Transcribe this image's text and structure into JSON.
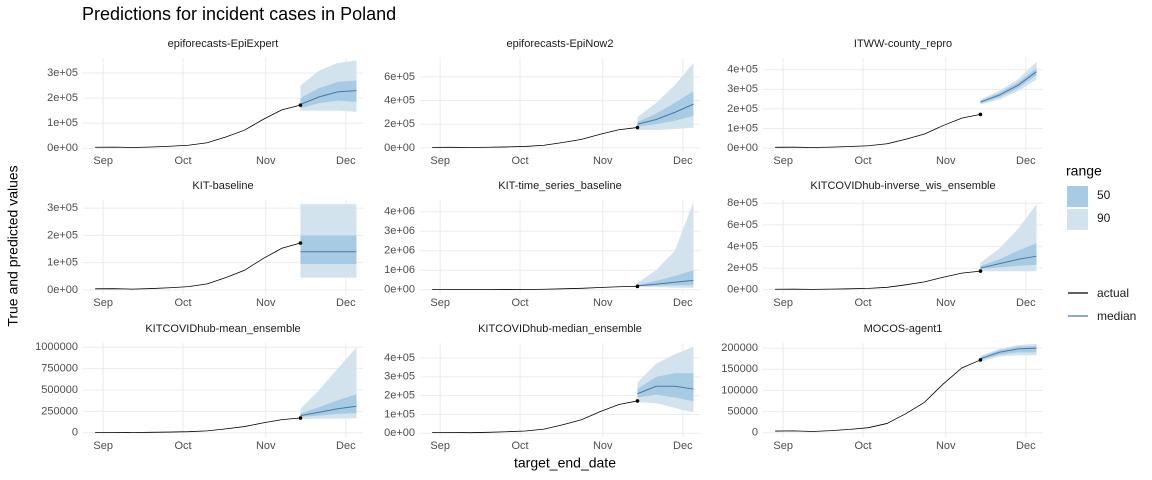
{
  "title": "Predictions for incident cases in Poland",
  "xlabel": "target_end_date",
  "ylabel": "True and predicted values",
  "legend": {
    "title": "range",
    "ranges": [
      {
        "name": "50",
        "color": "#a8cbe4"
      },
      {
        "name": "90",
        "color": "#d2e3ee"
      }
    ],
    "lines": [
      {
        "name": "actual",
        "color": "#000000"
      },
      {
        "name": "median",
        "color": "#4a77a3"
      }
    ]
  },
  "chart_data": [
    {
      "type": "line",
      "title": "epiforecasts-EpiExpert",
      "x": [
        0,
        1,
        2,
        3,
        4,
        5,
        6,
        7,
        8,
        9,
        10,
        11
      ],
      "xlim": [
        -0.65,
        14.35
      ],
      "xticks": [
        {
          "value": 0.43,
          "label": "Sep"
        },
        {
          "value": 4.71,
          "label": "Oct"
        },
        {
          "value": 9.14,
          "label": "Nov"
        },
        {
          "value": 13.43,
          "label": "Dec"
        }
      ],
      "series": [
        {
          "name": "actual",
          "values": [
            4000,
            4500,
            3000,
            5000,
            8000,
            12000,
            22000,
            45000,
            72000,
            115000,
            153000,
            172000
          ]
        }
      ],
      "forecast": {
        "x": [
          11,
          12,
          13,
          14
        ],
        "median": [
          175000,
          205000,
          225000,
          230000
        ],
        "lower_50": [
          160000,
          180000,
          190000,
          185000
        ],
        "upper_50": [
          200000,
          240000,
          265000,
          270000
        ],
        "lower_90": [
          150000,
          150000,
          150000,
          145000
        ],
        "upper_90": [
          250000,
          310000,
          340000,
          350000
        ]
      },
      "ylim": [
        -15000,
        360000
      ],
      "yticks": [
        {
          "value": 0,
          "label": "0e+00"
        },
        {
          "value": 100000,
          "label": "1e+05"
        },
        {
          "value": 200000,
          "label": "2e+05"
        },
        {
          "value": 300000,
          "label": "3e+05"
        }
      ]
    },
    {
      "type": "line",
      "title": "epiforecasts-EpiNow2",
      "x": [
        0,
        1,
        2,
        3,
        4,
        5,
        6,
        7,
        8,
        9,
        10,
        11
      ],
      "xlim": [
        -0.65,
        14.35
      ],
      "xticks": [
        {
          "value": 0.43,
          "label": "Sep"
        },
        {
          "value": 4.71,
          "label": "Oct"
        },
        {
          "value": 9.14,
          "label": "Nov"
        },
        {
          "value": 13.43,
          "label": "Dec"
        }
      ],
      "series": [
        {
          "name": "actual",
          "values": [
            4000,
            4500,
            3000,
            5000,
            8000,
            12000,
            22000,
            45000,
            72000,
            115000,
            153000,
            172000
          ]
        }
      ],
      "forecast": {
        "x": [
          11,
          12,
          13,
          14
        ],
        "median": [
          200000,
          240000,
          300000,
          370000
        ],
        "lower_50": [
          180000,
          200000,
          230000,
          270000
        ],
        "upper_50": [
          220000,
          290000,
          380000,
          480000
        ],
        "lower_90": [
          150000,
          150000,
          160000,
          170000
        ],
        "upper_90": [
          260000,
          380000,
          530000,
          720000
        ]
      },
      "ylim": [
        -35000,
        760000
      ],
      "yticks": [
        {
          "value": 0,
          "label": "0e+00"
        },
        {
          "value": 200000,
          "label": "2e+05"
        },
        {
          "value": 400000,
          "label": "4e+05"
        },
        {
          "value": 600000,
          "label": "6e+05"
        }
      ]
    },
    {
      "type": "line",
      "title": "ITWW-county_repro",
      "x": [
        0,
        1,
        2,
        3,
        4,
        5,
        6,
        7,
        8,
        9,
        10,
        11
      ],
      "xlim": [
        -0.65,
        14.35
      ],
      "xticks": [
        {
          "value": 0.43,
          "label": "Sep"
        },
        {
          "value": 4.71,
          "label": "Oct"
        },
        {
          "value": 9.14,
          "label": "Nov"
        },
        {
          "value": 13.43,
          "label": "Dec"
        }
      ],
      "series": [
        {
          "name": "actual",
          "values": [
            4000,
            4500,
            3000,
            5000,
            8000,
            12000,
            22000,
            45000,
            72000,
            115000,
            153000,
            172000
          ]
        }
      ],
      "forecast": {
        "x": [
          11,
          12,
          13,
          14
        ],
        "median": [
          235000,
          270000,
          320000,
          390000
        ],
        "lower_50": [
          228000,
          258000,
          305000,
          372000
        ],
        "upper_50": [
          242000,
          282000,
          335000,
          408000
        ],
        "lower_90": [
          222000,
          248000,
          290000,
          350000
        ],
        "upper_90": [
          248000,
          292000,
          350000,
          440000
        ]
      },
      "ylim": [
        -20000,
        460000
      ],
      "yticks": [
        {
          "value": 0,
          "label": "0e+00"
        },
        {
          "value": 100000,
          "label": "1e+05"
        },
        {
          "value": 200000,
          "label": "2e+05"
        },
        {
          "value": 300000,
          "label": "3e+05"
        },
        {
          "value": 400000,
          "label": "4e+05"
        }
      ]
    },
    {
      "type": "line",
      "title": "KIT-baseline",
      "x": [
        0,
        1,
        2,
        3,
        4,
        5,
        6,
        7,
        8,
        9,
        10,
        11
      ],
      "xlim": [
        -0.65,
        14.35
      ],
      "xticks": [
        {
          "value": 0.43,
          "label": "Sep"
        },
        {
          "value": 4.71,
          "label": "Oct"
        },
        {
          "value": 9.14,
          "label": "Nov"
        },
        {
          "value": 13.43,
          "label": "Dec"
        }
      ],
      "series": [
        {
          "name": "actual",
          "values": [
            4000,
            4500,
            3000,
            5000,
            8000,
            12000,
            22000,
            45000,
            72000,
            115000,
            153000,
            172000
          ]
        }
      ],
      "forecast": {
        "x": [
          11,
          12,
          13,
          14
        ],
        "median": [
          140000,
          140000,
          140000,
          140000
        ],
        "lower_50": [
          95000,
          95000,
          95000,
          95000
        ],
        "upper_50": [
          200000,
          200000,
          200000,
          200000
        ],
        "lower_90": [
          45000,
          45000,
          45000,
          45000
        ],
        "upper_90": [
          315000,
          315000,
          315000,
          315000
        ]
      },
      "ylim": [
        -15000,
        330000
      ],
      "yticks": [
        {
          "value": 0,
          "label": "0e+00"
        },
        {
          "value": 100000,
          "label": "1e+05"
        },
        {
          "value": 200000,
          "label": "2e+05"
        },
        {
          "value": 300000,
          "label": "3e+05"
        }
      ]
    },
    {
      "type": "line",
      "title": "KIT-time_series_baseline",
      "x": [
        0,
        1,
        2,
        3,
        4,
        5,
        6,
        7,
        8,
        9,
        10,
        11
      ],
      "xlim": [
        -0.65,
        14.35
      ],
      "xticks": [
        {
          "value": 0.43,
          "label": "Sep"
        },
        {
          "value": 4.71,
          "label": "Oct"
        },
        {
          "value": 9.14,
          "label": "Nov"
        },
        {
          "value": 13.43,
          "label": "Dec"
        }
      ],
      "series": [
        {
          "name": "actual",
          "values": [
            4000,
            4500,
            3000,
            5000,
            8000,
            12000,
            22000,
            45000,
            72000,
            115000,
            153000,
            172000
          ]
        }
      ],
      "forecast": {
        "x": [
          11,
          12,
          13,
          14
        ],
        "median": [
          200000,
          280000,
          380000,
          480000
        ],
        "lower_50": [
          180000,
          200000,
          220000,
          230000
        ],
        "upper_50": [
          250000,
          450000,
          700000,
          1000000
        ],
        "lower_90": [
          150000,
          130000,
          110000,
          100000
        ],
        "upper_90": [
          350000,
          1000000,
          2000000,
          4500000
        ]
      },
      "ylim": [
        -220000,
        4600000
      ],
      "yticks": [
        {
          "value": 0,
          "label": "0e+00"
        },
        {
          "value": 1000000,
          "label": "1e+06"
        },
        {
          "value": 2000000,
          "label": "2e+06"
        },
        {
          "value": 3000000,
          "label": "3e+06"
        },
        {
          "value": 4000000,
          "label": "4e+06"
        }
      ]
    },
    {
      "type": "line",
      "title": "KITCOVIDhub-inverse_wis_ensemble",
      "x": [
        0,
        1,
        2,
        3,
        4,
        5,
        6,
        7,
        8,
        9,
        10,
        11
      ],
      "xlim": [
        -0.65,
        14.35
      ],
      "xticks": [
        {
          "value": 0.43,
          "label": "Sep"
        },
        {
          "value": 4.71,
          "label": "Oct"
        },
        {
          "value": 9.14,
          "label": "Nov"
        },
        {
          "value": 13.43,
          "label": "Dec"
        }
      ],
      "series": [
        {
          "name": "actual",
          "values": [
            4000,
            4500,
            3000,
            5000,
            8000,
            12000,
            22000,
            45000,
            72000,
            115000,
            153000,
            172000
          ]
        }
      ],
      "forecast": {
        "x": [
          11,
          12,
          13,
          14
        ],
        "median": [
          200000,
          240000,
          280000,
          310000
        ],
        "lower_50": [
          190000,
          205000,
          220000,
          230000
        ],
        "upper_50": [
          220000,
          280000,
          360000,
          430000
        ],
        "lower_90": [
          170000,
          170000,
          170000,
          170000
        ],
        "upper_90": [
          250000,
          380000,
          560000,
          790000
        ]
      },
      "ylim": [
        -40000,
        830000
      ],
      "yticks": [
        {
          "value": 0,
          "label": "0e+00"
        },
        {
          "value": 200000,
          "label": "2e+05"
        },
        {
          "value": 400000,
          "label": "4e+05"
        },
        {
          "value": 600000,
          "label": "6e+05"
        },
        {
          "value": 800000,
          "label": "8e+05"
        }
      ]
    },
    {
      "type": "line",
      "title": "KITCOVIDhub-mean_ensemble",
      "x": [
        0,
        1,
        2,
        3,
        4,
        5,
        6,
        7,
        8,
        9,
        10,
        11
      ],
      "xlim": [
        -0.65,
        14.35
      ],
      "xticks": [
        {
          "value": 0.43,
          "label": "Sep"
        },
        {
          "value": 4.71,
          "label": "Oct"
        },
        {
          "value": 9.14,
          "label": "Nov"
        },
        {
          "value": 13.43,
          "label": "Dec"
        }
      ],
      "series": [
        {
          "name": "actual",
          "values": [
            4000,
            4500,
            3000,
            5000,
            8000,
            12000,
            22000,
            45000,
            72000,
            115000,
            153000,
            172000
          ]
        }
      ],
      "forecast": {
        "x": [
          11,
          12,
          13,
          14
        ],
        "median": [
          200000,
          240000,
          280000,
          310000
        ],
        "lower_50": [
          185000,
          200000,
          220000,
          230000
        ],
        "upper_50": [
          225000,
          300000,
          380000,
          450000
        ],
        "lower_90": [
          160000,
          165000,
          165000,
          170000
        ],
        "upper_90": [
          280000,
          500000,
          750000,
          1000000
        ]
      },
      "ylim": [
        -50000,
        1050000
      ],
      "yticks": [
        0,
        250000,
        500000,
        750000,
        1000000
      ]
    },
    {
      "type": "line",
      "title": "KITCOVIDhub-median_ensemble",
      "x": [
        0,
        1,
        2,
        3,
        4,
        5,
        6,
        7,
        8,
        9,
        10,
        11
      ],
      "xlim": [
        -0.65,
        14.35
      ],
      "xticks": [
        {
          "value": 0.43,
          "label": "Sep"
        },
        {
          "value": 4.71,
          "label": "Oct"
        },
        {
          "value": 9.14,
          "label": "Nov"
        },
        {
          "value": 13.43,
          "label": "Dec"
        }
      ],
      "series": [
        {
          "name": "actual",
          "values": [
            4000,
            4500,
            3000,
            5000,
            8000,
            12000,
            22000,
            45000,
            72000,
            115000,
            153000,
            172000
          ]
        }
      ],
      "forecast": {
        "x": [
          11,
          12,
          13,
          14
        ],
        "median": [
          210000,
          250000,
          250000,
          235000
        ],
        "lower_50": [
          190000,
          205000,
          190000,
          170000
        ],
        "upper_50": [
          235000,
          300000,
          320000,
          320000
        ],
        "lower_90": [
          165000,
          160000,
          135000,
          110000
        ],
        "upper_90": [
          270000,
          370000,
          420000,
          460000
        ]
      },
      "ylim": [
        -20000,
        480000
      ],
      "yticks": [
        {
          "value": 0,
          "label": "0e+00"
        },
        {
          "value": 100000,
          "label": "1e+05"
        },
        {
          "value": 200000,
          "label": "2e+05"
        },
        {
          "value": 300000,
          "label": "3e+05"
        },
        {
          "value": 400000,
          "label": "4e+05"
        }
      ]
    },
    {
      "type": "line",
      "title": "MOCOS-agent1",
      "x": [
        0,
        1,
        2,
        3,
        4,
        5,
        6,
        7,
        8,
        9,
        10,
        11
      ],
      "xlim": [
        -0.65,
        14.35
      ],
      "xticks": [
        {
          "value": 0.43,
          "label": "Sep"
        },
        {
          "value": 4.71,
          "label": "Oct"
        },
        {
          "value": 9.14,
          "label": "Nov"
        },
        {
          "value": 13.43,
          "label": "Dec"
        }
      ],
      "series": [
        {
          "name": "actual",
          "values": [
            4000,
            4500,
            3000,
            5000,
            8000,
            12000,
            22000,
            45000,
            72000,
            115000,
            153000,
            172000
          ]
        }
      ],
      "forecast": {
        "x": [
          11,
          12,
          13,
          14
        ],
        "median": [
          175000,
          190000,
          198000,
          200000
        ],
        "lower_50": [
          172000,
          184000,
          190000,
          190000
        ],
        "upper_50": [
          178000,
          195000,
          203000,
          205000
        ],
        "lower_90": [
          168000,
          180000,
          183000,
          183000
        ],
        "upper_90": [
          182000,
          198000,
          207000,
          210000
        ]
      },
      "ylim": [
        -10000,
        212000
      ],
      "yticks": [
        0,
        50000,
        100000,
        150000,
        200000
      ]
    }
  ]
}
